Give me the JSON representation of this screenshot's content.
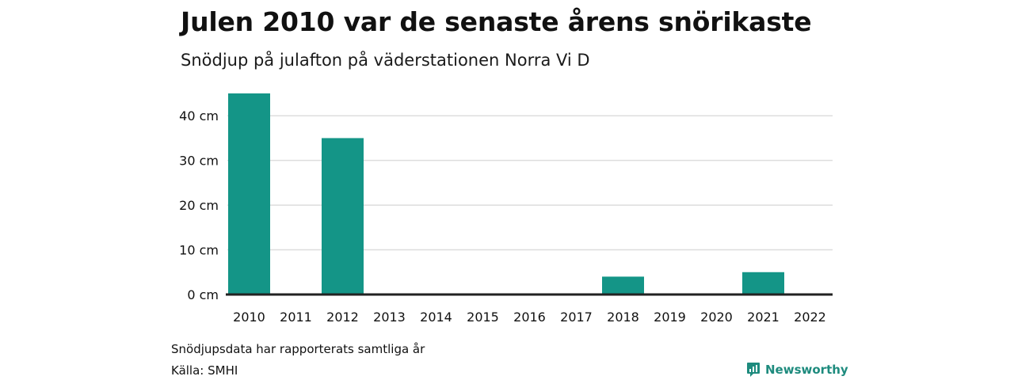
{
  "header": {
    "title": "Julen 2010 var de senaste årens snörikaste",
    "subtitle": "Snödjup på julafton på väderstationen Norra Vi D"
  },
  "footer": {
    "note": "Snödjupsdata har rapporterats samtliga år",
    "source": "Källa: SMHI",
    "brand": "Newsworthy",
    "brand_icon": "newsworthy-logo-icon"
  },
  "colors": {
    "bar": "#149587",
    "grid": "#dddddd",
    "baseline": "#222222",
    "brand": "#1e8b7e"
  },
  "chart_data": {
    "type": "bar",
    "title": "Julen 2010 var de senaste årens snörikaste",
    "subtitle": "Snödjup på julafton på väderstationen Norra Vi D",
    "categories": [
      "2010",
      "2011",
      "2012",
      "2013",
      "2014",
      "2015",
      "2016",
      "2017",
      "2018",
      "2019",
      "2020",
      "2021",
      "2022"
    ],
    "values": [
      45,
      0,
      35,
      0,
      0,
      0,
      0,
      0,
      4,
      0,
      0,
      5,
      0
    ],
    "ylim": [
      0,
      45
    ],
    "yticks": [
      0,
      10,
      20,
      30,
      40
    ],
    "ytick_labels": [
      "0 cm",
      "10 cm",
      "20 cm",
      "30 cm",
      "40 cm"
    ],
    "xlabel": "",
    "ylabel": "",
    "grid": true,
    "legend": "none"
  }
}
